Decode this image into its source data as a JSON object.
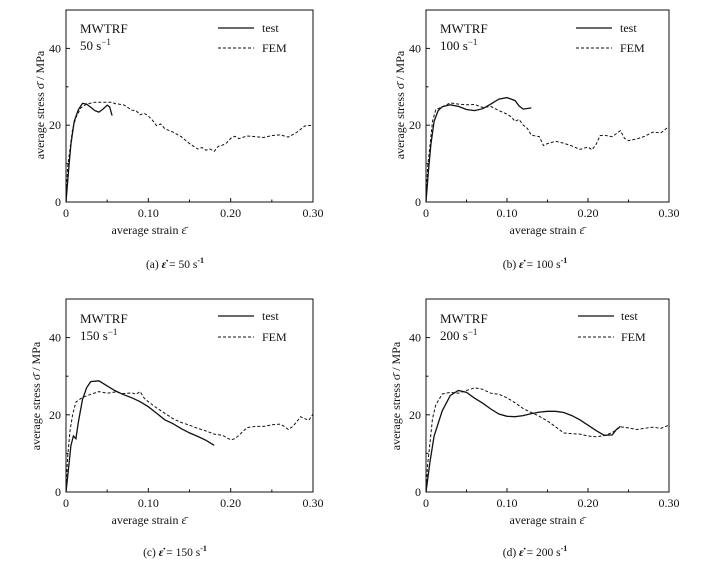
{
  "panels": [
    {
      "title": "MWTRF",
      "rate": "50",
      "caption": "(a) ",
      "caption_rate": "= 50 s"
    },
    {
      "title": "MWTRF",
      "rate": "100",
      "caption": "(b) ",
      "caption_rate": "= 100 s"
    },
    {
      "title": "MWTRF",
      "rate": "150",
      "caption": "(c) ",
      "caption_rate": "= 150 s"
    },
    {
      "title": "MWTRF",
      "rate": "200",
      "caption": "(d) ",
      "caption_rate": "= 200 s"
    }
  ],
  "common": {
    "ylabel": "average stress σ̄ / MPa",
    "xlabel": "average strain ε̄",
    "legend_test": "test",
    "legend_fem": "FEM",
    "rate_unit": "s",
    "rate_exp": "−1",
    "caption_exp": "-1",
    "eps_dot": "ε̇"
  },
  "chart_data": [
    {
      "type": "line",
      "xlim": [
        0,
        0.3
      ],
      "ylim": [
        0,
        50
      ],
      "xticks": [
        "0",
        "0.10",
        "0.20",
        "0.30"
      ],
      "yticks": [
        "0",
        "20",
        "40"
      ],
      "legend": "top-right",
      "series": [
        {
          "name": "test",
          "style": "solid",
          "points": [
            [
              0,
              0
            ],
            [
              0.003,
              8
            ],
            [
              0.006,
              15
            ],
            [
              0.01,
              21
            ],
            [
              0.015,
              24
            ],
            [
              0.02,
              25.7
            ],
            [
              0.025,
              25.5
            ],
            [
              0.03,
              24.7
            ],
            [
              0.035,
              23.8
            ],
            [
              0.04,
              23.4
            ],
            [
              0.045,
              24.2
            ],
            [
              0.05,
              25.2
            ],
            [
              0.053,
              24.8
            ],
            [
              0.056,
              22.5
            ]
          ]
        },
        {
          "name": "FEM",
          "style": "dashed",
          "points": [
            [
              0,
              0
            ],
            [
              0.002,
              9
            ],
            [
              0.005,
              14
            ],
            [
              0.008,
              19
            ],
            [
              0.012,
              22
            ],
            [
              0.018,
              24.5
            ],
            [
              0.025,
              25.5
            ],
            [
              0.035,
              26
            ],
            [
              0.045,
              26
            ],
            [
              0.055,
              26
            ],
            [
              0.06,
              25.6
            ],
            [
              0.07,
              25.3
            ],
            [
              0.075,
              24.6
            ],
            [
              0.08,
              23.9
            ],
            [
              0.085,
              23.8
            ],
            [
              0.09,
              22.7
            ],
            [
              0.095,
              23.1
            ],
            [
              0.1,
              22.4
            ],
            [
              0.105,
              21.3
            ],
            [
              0.11,
              19.9
            ],
            [
              0.115,
              20.3
            ],
            [
              0.12,
              19.1
            ],
            [
              0.13,
              18.2
            ],
            [
              0.14,
              17
            ],
            [
              0.15,
              15.2
            ],
            [
              0.155,
              14.5
            ],
            [
              0.16,
              13.8
            ],
            [
              0.165,
              14.2
            ],
            [
              0.17,
              13.5
            ],
            [
              0.175,
              13.8
            ],
            [
              0.18,
              13.2
            ],
            [
              0.185,
              14.5
            ],
            [
              0.19,
              14.8
            ],
            [
              0.195,
              15.4
            ],
            [
              0.2,
              16.6
            ],
            [
              0.205,
              17.1
            ],
            [
              0.21,
              16.5
            ],
            [
              0.22,
              17.2
            ],
            [
              0.23,
              17
            ],
            [
              0.24,
              16.8
            ],
            [
              0.25,
              17.3
            ],
            [
              0.26,
              17.5
            ],
            [
              0.27,
              16.9
            ],
            [
              0.28,
              18.1
            ],
            [
              0.29,
              19.8
            ],
            [
              0.3,
              20
            ]
          ]
        }
      ]
    },
    {
      "type": "line",
      "xlim": [
        0,
        0.3
      ],
      "ylim": [
        0,
        50
      ],
      "xticks": [
        "0",
        "0.10",
        "0.20",
        "0.30"
      ],
      "yticks": [
        "0",
        "20",
        "40"
      ],
      "legend": "top-right",
      "series": [
        {
          "name": "test",
          "style": "solid",
          "points": [
            [
              0,
              0
            ],
            [
              0.003,
              8
            ],
            [
              0.006,
              15
            ],
            [
              0.01,
              21
            ],
            [
              0.015,
              23.8
            ],
            [
              0.02,
              24.8
            ],
            [
              0.03,
              25.3
            ],
            [
              0.04,
              24.9
            ],
            [
              0.05,
              24.1
            ],
            [
              0.06,
              23.8
            ],
            [
              0.07,
              24.3
            ],
            [
              0.08,
              25.5
            ],
            [
              0.09,
              26.8
            ],
            [
              0.1,
              27.2
            ],
            [
              0.11,
              26.4
            ],
            [
              0.115,
              25
            ],
            [
              0.12,
              24.2
            ],
            [
              0.13,
              24.5
            ]
          ]
        },
        {
          "name": "FEM",
          "style": "dashed",
          "points": [
            [
              0,
              0
            ],
            [
              0.002,
              9
            ],
            [
              0.005,
              15
            ],
            [
              0.008,
              21
            ],
            [
              0.012,
              24
            ],
            [
              0.02,
              24.8
            ],
            [
              0.03,
              25.8
            ],
            [
              0.04,
              25.5
            ],
            [
              0.05,
              25.3
            ],
            [
              0.06,
              25.4
            ],
            [
              0.07,
              24.6
            ],
            [
              0.08,
              24.9
            ],
            [
              0.09,
              23.8
            ],
            [
              0.1,
              22.9
            ],
            [
              0.105,
              22.2
            ],
            [
              0.11,
              21
            ],
            [
              0.115,
              21.5
            ],
            [
              0.12,
              20
            ],
            [
              0.125,
              19.2
            ],
            [
              0.13,
              17.4
            ],
            [
              0.14,
              17
            ],
            [
              0.145,
              14.7
            ],
            [
              0.15,
              15.2
            ],
            [
              0.16,
              15.8
            ],
            [
              0.17,
              15.3
            ],
            [
              0.18,
              14.6
            ],
            [
              0.19,
              13.7
            ],
            [
              0.2,
              14.3
            ],
            [
              0.205,
              13.6
            ],
            [
              0.21,
              15
            ],
            [
              0.215,
              17.3
            ],
            [
              0.22,
              17.4
            ],
            [
              0.23,
              17
            ],
            [
              0.24,
              18.6
            ],
            [
              0.245,
              16.6
            ],
            [
              0.25,
              16
            ],
            [
              0.26,
              16.4
            ],
            [
              0.27,
              17.1
            ],
            [
              0.28,
              18.2
            ],
            [
              0.29,
              18
            ],
            [
              0.3,
              19.7
            ]
          ]
        }
      ]
    },
    {
      "type": "line",
      "xlim": [
        0,
        0.3
      ],
      "ylim": [
        0,
        50
      ],
      "xticks": [
        "0",
        "0.10",
        "0.20",
        "0.30"
      ],
      "yticks": [
        "0",
        "20",
        "40"
      ],
      "legend": "top-right",
      "series": [
        {
          "name": "test",
          "style": "solid",
          "points": [
            [
              0,
              0
            ],
            [
              0.003,
              6
            ],
            [
              0.006,
              12
            ],
            [
              0.009,
              14.5
            ],
            [
              0.012,
              13.8
            ],
            [
              0.015,
              18
            ],
            [
              0.02,
              24
            ],
            [
              0.025,
              27
            ],
            [
              0.03,
              28.6
            ],
            [
              0.04,
              28.8
            ],
            [
              0.05,
              27.5
            ],
            [
              0.06,
              26.2
            ],
            [
              0.07,
              25.2
            ],
            [
              0.08,
              24.4
            ],
            [
              0.09,
              23.4
            ],
            [
              0.1,
              22.1
            ],
            [
              0.11,
              20.4
            ],
            [
              0.12,
              18.7
            ],
            [
              0.13,
              17.7
            ],
            [
              0.14,
              16.4
            ],
            [
              0.15,
              15.3
            ],
            [
              0.16,
              14.4
            ],
            [
              0.17,
              13.4
            ],
            [
              0.18,
              12.1
            ]
          ]
        },
        {
          "name": "FEM",
          "style": "dashed",
          "points": [
            [
              0,
              0
            ],
            [
              0.002,
              9
            ],
            [
              0.005,
              16
            ],
            [
              0.008,
              20
            ],
            [
              0.012,
              23.3
            ],
            [
              0.02,
              24.5
            ],
            [
              0.03,
              25.3
            ],
            [
              0.04,
              26
            ],
            [
              0.05,
              25.6
            ],
            [
              0.06,
              25.9
            ],
            [
              0.07,
              25.5
            ],
            [
              0.08,
              25.7
            ],
            [
              0.085,
              25.3
            ],
            [
              0.09,
              26
            ],
            [
              0.095,
              24.3
            ],
            [
              0.1,
              23.4
            ],
            [
              0.11,
              21.8
            ],
            [
              0.12,
              20.4
            ],
            [
              0.13,
              19
            ],
            [
              0.14,
              18
            ],
            [
              0.15,
              17.3
            ],
            [
              0.16,
              16.5
            ],
            [
              0.17,
              15.8
            ],
            [
              0.18,
              15
            ],
            [
              0.19,
              14.7
            ],
            [
              0.2,
              13.5
            ],
            [
              0.205,
              13.8
            ],
            [
              0.21,
              14.7
            ],
            [
              0.22,
              16.7
            ],
            [
              0.23,
              17
            ],
            [
              0.24,
              17
            ],
            [
              0.25,
              17.4
            ],
            [
              0.26,
              17.6
            ],
            [
              0.265,
              17
            ],
            [
              0.27,
              16.2
            ],
            [
              0.275,
              16.9
            ],
            [
              0.28,
              18.1
            ],
            [
              0.285,
              19.5
            ],
            [
              0.29,
              19
            ],
            [
              0.295,
              18.6
            ],
            [
              0.3,
              20.2
            ]
          ]
        }
      ]
    },
    {
      "type": "line",
      "xlim": [
        0,
        0.3
      ],
      "ylim": [
        0,
        50
      ],
      "xticks": [
        "0",
        "0.10",
        "0.20",
        "0.30"
      ],
      "yticks": [
        "0",
        "20",
        "40"
      ],
      "legend": "top-right",
      "series": [
        {
          "name": "test",
          "style": "solid",
          "points": [
            [
              0,
              0
            ],
            [
              0.005,
              8
            ],
            [
              0.01,
              14.5
            ],
            [
              0.02,
              21
            ],
            [
              0.03,
              25
            ],
            [
              0.04,
              26.3
            ],
            [
              0.05,
              25.8
            ],
            [
              0.06,
              24.3
            ],
            [
              0.07,
              23
            ],
            [
              0.08,
              21.5
            ],
            [
              0.09,
              20.2
            ],
            [
              0.1,
              19.6
            ],
            [
              0.11,
              19.5
            ],
            [
              0.12,
              19.8
            ],
            [
              0.13,
              20.3
            ],
            [
              0.14,
              20.7
            ],
            [
              0.15,
              20.9
            ],
            [
              0.16,
              20.9
            ],
            [
              0.17,
              20.6
            ],
            [
              0.18,
              19.8
            ],
            [
              0.19,
              18.7
            ],
            [
              0.2,
              17.3
            ],
            [
              0.21,
              15.9
            ],
            [
              0.22,
              14.7
            ],
            [
              0.23,
              14.8
            ],
            [
              0.235,
              16.2
            ],
            [
              0.24,
              17
            ]
          ]
        },
        {
          "name": "FEM",
          "style": "dashed",
          "points": [
            [
              0,
              0
            ],
            [
              0.002,
              7
            ],
            [
              0.005,
              13
            ],
            [
              0.008,
              19
            ],
            [
              0.012,
              22.5
            ],
            [
              0.02,
              25.4
            ],
            [
              0.03,
              25.8
            ],
            [
              0.04,
              25.6
            ],
            [
              0.05,
              26.3
            ],
            [
              0.06,
              27
            ],
            [
              0.07,
              26.6
            ],
            [
              0.08,
              25.6
            ],
            [
              0.09,
              25.3
            ],
            [
              0.1,
              24.4
            ],
            [
              0.11,
              23.1
            ],
            [
              0.12,
              21.6
            ],
            [
              0.13,
              20.6
            ],
            [
              0.14,
              19.6
            ],
            [
              0.15,
              18.4
            ],
            [
              0.16,
              16.9
            ],
            [
              0.17,
              15.3
            ],
            [
              0.18,
              15.1
            ],
            [
              0.19,
              15
            ],
            [
              0.2,
              14.5
            ],
            [
              0.21,
              14.3
            ],
            [
              0.22,
              14.6
            ],
            [
              0.23,
              15.4
            ],
            [
              0.24,
              16.9
            ],
            [
              0.25,
              16.6
            ],
            [
              0.26,
              16.2
            ],
            [
              0.27,
              16.5
            ],
            [
              0.28,
              16.8
            ],
            [
              0.29,
              16.5
            ],
            [
              0.3,
              17.3
            ]
          ]
        }
      ]
    }
  ]
}
